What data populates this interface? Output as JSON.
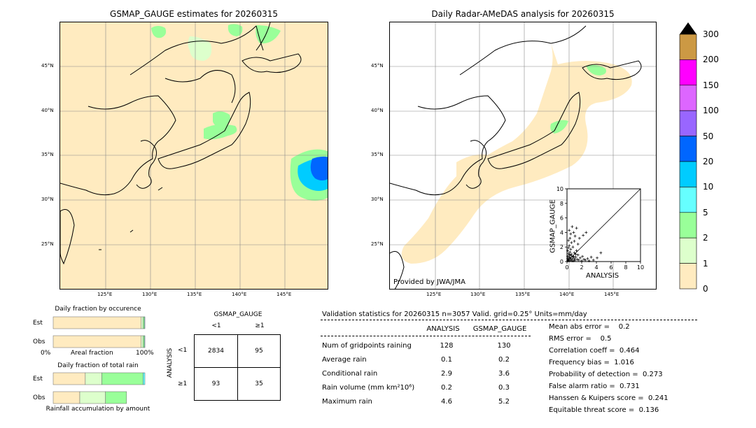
{
  "left_map": {
    "title": "GSMAP_GAUGE estimates for 20260315"
  },
  "right_map": {
    "title": "Daily Radar-AMeDAS analysis for 20260315",
    "credit": "Provided by JWA/JMA"
  },
  "map_axes": {
    "lat_labels": [
      "45°N",
      "40°N",
      "35°N",
      "30°N",
      "25°N"
    ],
    "lon_labels": [
      "125°E",
      "130°E",
      "135°E",
      "140°E",
      "145°E"
    ]
  },
  "colorbar": {
    "ticks": [
      "300",
      "200",
      "150",
      "100",
      "50",
      "20",
      "10",
      "5",
      "2",
      "1",
      "0"
    ],
    "colors": [
      "#cc9944",
      "#ff00ff",
      "#dd66ff",
      "#9966ff",
      "#0066ff",
      "#00ccff",
      "#66ffff",
      "#99ff99",
      "#ddffcc",
      "#ffebc0"
    ]
  },
  "chart_data": [
    {
      "type": "scatter",
      "title": "",
      "xlabel": "ANALYSIS",
      "ylabel": "GSMAP_GAUGE",
      "xlim": [
        0,
        10
      ],
      "ylim": [
        0,
        10
      ],
      "x_ticks": [
        "0",
        "2",
        "4",
        "6",
        "8",
        "10"
      ],
      "y_ticks": [
        "0",
        "2",
        "4",
        "6",
        "8",
        "10"
      ],
      "points": [
        [
          0.1,
          0.1
        ],
        [
          0.2,
          0.3
        ],
        [
          0.3,
          0.1
        ],
        [
          0.4,
          0.5
        ],
        [
          0.5,
          0.2
        ],
        [
          0.6,
          0.8
        ],
        [
          0.7,
          0.3
        ],
        [
          0.8,
          0.6
        ],
        [
          0.9,
          0.1
        ],
        [
          1.0,
          0.4
        ],
        [
          0.1,
          0.7
        ],
        [
          0.2,
          1.1
        ],
        [
          0.3,
          0.9
        ],
        [
          0.1,
          1.5
        ],
        [
          0.2,
          1.9
        ],
        [
          0.4,
          1.3
        ],
        [
          0.5,
          1.7
        ],
        [
          0.3,
          2.2
        ],
        [
          0.6,
          2.6
        ],
        [
          0.2,
          2.9
        ],
        [
          0.4,
          3.2
        ],
        [
          0.5,
          3.8
        ],
        [
          0.3,
          4.3
        ],
        [
          0.6,
          1.0
        ],
        [
          0.8,
          2.0
        ],
        [
          1.0,
          1.2
        ],
        [
          1.2,
          0.6
        ],
        [
          1.3,
          1.5
        ],
        [
          1.4,
          0.3
        ],
        [
          1.5,
          0.9
        ],
        [
          1.6,
          0.2
        ],
        [
          1.8,
          0.5
        ],
        [
          2.0,
          0.1
        ],
        [
          2.1,
          0.7
        ],
        [
          2.3,
          0.3
        ],
        [
          2.5,
          0.2
        ],
        [
          2.8,
          0.4
        ],
        [
          3.0,
          0.1
        ],
        [
          3.3,
          0.6
        ],
        [
          3.6,
          0.2
        ],
        [
          4.1,
          0.5
        ],
        [
          4.6,
          1.2
        ],
        [
          1.1,
          3.5
        ],
        [
          1.3,
          4.6
        ],
        [
          0.9,
          4.0
        ],
        [
          1.7,
          3.2
        ],
        [
          2.2,
          3.6
        ],
        [
          2.6,
          4.0
        ],
        [
          0.7,
          4.8
        ],
        [
          1.5,
          2.4
        ],
        [
          1.0,
          2.8
        ],
        [
          0.2,
          0.2
        ],
        [
          0.1,
          0.4
        ],
        [
          0.3,
          0.6
        ],
        [
          0.5,
          0.4
        ],
        [
          0.7,
          0.1
        ],
        [
          0.9,
          0.7
        ],
        [
          1.1,
          0.2
        ],
        [
          1.2,
          1.0
        ],
        [
          0.4,
          0.9
        ]
      ]
    },
    {
      "type": "bar",
      "title": "Daily fraction by occurence",
      "categories": [
        "Est",
        "Obs"
      ],
      "series": [
        {
          "values": [
            0.96,
            0.96
          ],
          "color": "#ffebc0"
        },
        {
          "values": [
            0.02,
            0.02
          ],
          "color": "#ddffcc"
        },
        {
          "values": [
            0.015,
            0.015
          ],
          "color": "#99ff99"
        },
        {
          "values": [
            0.005,
            0.005
          ],
          "color": "#66ffff"
        }
      ],
      "xlabel": "Areal fraction",
      "x_ticks": [
        "0%",
        "100%"
      ]
    },
    {
      "type": "bar",
      "title": "Daily fraction of total rain",
      "categories": [
        "Est",
        "Obs"
      ],
      "series": [
        {
          "values": [
            0.35,
            0.29
          ],
          "color": "#ffebc0"
        },
        {
          "values": [
            0.18,
            0.28
          ],
          "color": "#ddffcc"
        },
        {
          "values": [
            0.45,
            0.23
          ],
          "color": "#99ff99"
        },
        {
          "values": [
            0.02,
            0.0
          ],
          "color": "#66ffff"
        }
      ],
      "xlabel": "Rainfall accumulation by amount"
    }
  ],
  "contingency": {
    "col_title": "GSMAP_GAUGE",
    "row_title": "ANALYSIS",
    "col_labels": [
      "<1",
      "≥1"
    ],
    "row_labels": [
      "<1",
      "≥1"
    ],
    "cells": [
      [
        "2834",
        "95"
      ],
      [
        "93",
        "35"
      ]
    ]
  },
  "validation": {
    "header": "Validation statistics for 20260315  n=3057 Valid. grid=0.25° Units=mm/day",
    "col_analysis": "ANALYSIS",
    "col_gsmap": "GSMAP_GAUGE",
    "rows": [
      {
        "label": "Num of gridpoints raining",
        "analysis": "128",
        "gsmap": "130"
      },
      {
        "label": "Average rain",
        "analysis": "0.1",
        "gsmap": "0.2"
      },
      {
        "label": "Conditional rain",
        "analysis": "2.9",
        "gsmap": "3.6"
      },
      {
        "label": "Rain volume (mm km²10⁶)",
        "analysis": "0.2",
        "gsmap": "0.3"
      },
      {
        "label": "Maximum rain",
        "analysis": "4.6",
        "gsmap": "5.2"
      }
    ],
    "scores": [
      "Mean abs error =    0.2",
      "RMS error =    0.5",
      "Correlation coeff =  0.464",
      "Frequency bias =  1.016",
      "Probability of detection =  0.273",
      "False alarm ratio =  0.731",
      "Hanssen & Kuipers score =  0.241",
      "Equitable threat score =  0.136"
    ]
  }
}
